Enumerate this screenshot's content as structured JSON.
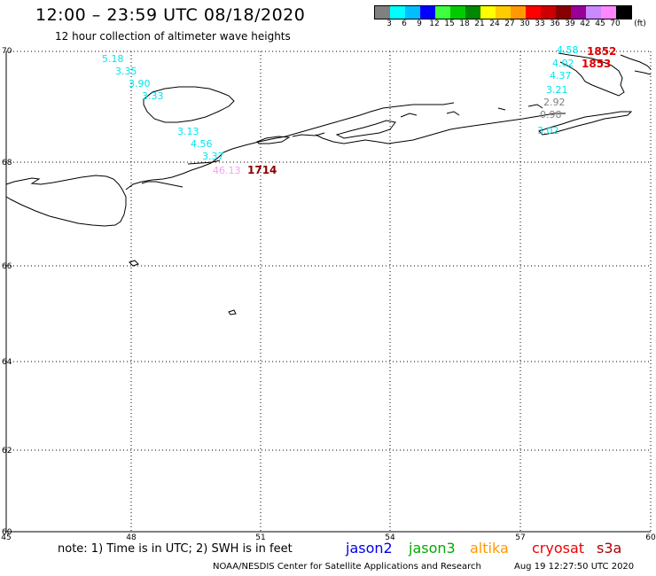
{
  "header": {
    "title": "12:00 – 23:59 UTC 08/18/2020",
    "subtitle": "12 hour collection of altimeter wave heights"
  },
  "legend": {
    "unit": "(ft)",
    "bins": [
      {
        "label": "3",
        "color": "#808080"
      },
      {
        "label": "6",
        "color": "#00ffff"
      },
      {
        "label": "9",
        "color": "#00bfff"
      },
      {
        "label": "12",
        "color": "#0000ff"
      },
      {
        "label": "15",
        "color": "#40ff40"
      },
      {
        "label": "18",
        "color": "#00cc00"
      },
      {
        "label": "21",
        "color": "#008800"
      },
      {
        "label": "24",
        "color": "#ffff00"
      },
      {
        "label": "27",
        "color": "#ffcc00"
      },
      {
        "label": "30",
        "color": "#ff9900"
      },
      {
        "label": "33",
        "color": "#ff0000"
      },
      {
        "label": "36",
        "color": "#cc0000"
      },
      {
        "label": "39",
        "color": "#880000"
      },
      {
        "label": "42",
        "color": "#990099"
      },
      {
        "label": "45",
        "color": "#cc88ff"
      },
      {
        "label": "70",
        "color": "#ff88ff"
      },
      {
        "label": "",
        "color": "#000000"
      }
    ]
  },
  "map": {
    "lon_range": [
      45,
      60
    ],
    "lat_range": [
      60,
      70
    ],
    "lon_ticks": [
      "45",
      "48",
      "51",
      "54",
      "57",
      "60"
    ],
    "lat_ticks": [
      "70",
      "68",
      "66",
      "64",
      "62",
      "60"
    ],
    "wave_heights": [
      {
        "text": "5.18",
        "color": "#00e5ee"
      },
      {
        "text": "3.35",
        "color": "#00e5ee"
      },
      {
        "text": "3.90",
        "color": "#00e5ee"
      },
      {
        "text": "3.33",
        "color": "#00e5ee"
      },
      {
        "text": "3.13",
        "color": "#00e5ee"
      },
      {
        "text": "4.56",
        "color": "#00e5ee"
      },
      {
        "text": "3.37",
        "color": "#00e5ee"
      },
      {
        "text": "46.13",
        "color": "#f7a0f0"
      },
      {
        "text": "4.58",
        "color": "#00e5ee"
      },
      {
        "text": "4.02",
        "color": "#00e5ee"
      },
      {
        "text": "4.37",
        "color": "#00e5ee"
      },
      {
        "text": "3.21",
        "color": "#00e5ee"
      },
      {
        "text": "2.92",
        "color": "#808080"
      },
      {
        "text": "0.98",
        "color": "#808080"
      },
      {
        "text": "3.02",
        "color": "#00e5ee"
      }
    ],
    "pass_times": [
      {
        "text": "1714",
        "color": "#8b0000"
      },
      {
        "text": "1852",
        "color": "#dd0000"
      },
      {
        "text": "1853",
        "color": "#dd0000"
      }
    ]
  },
  "note": "note: 1) Time is in UTC; 2) SWH is in feet",
  "satellites": [
    {
      "name": "jason2",
      "color": "#0000ee"
    },
    {
      "name": "jason3",
      "color": "#00aa00"
    },
    {
      "name": "altika",
      "color": "#ff9900"
    },
    {
      "name": "cryosat",
      "color": "#ee0000"
    },
    {
      "name": "s3a",
      "color": "#aa0000"
    }
  ],
  "footer": {
    "center": "NOAA/NESDIS Center for Satellite Applications and Research",
    "timestamp": "Aug 19 12:27:50 UTC 2020"
  }
}
